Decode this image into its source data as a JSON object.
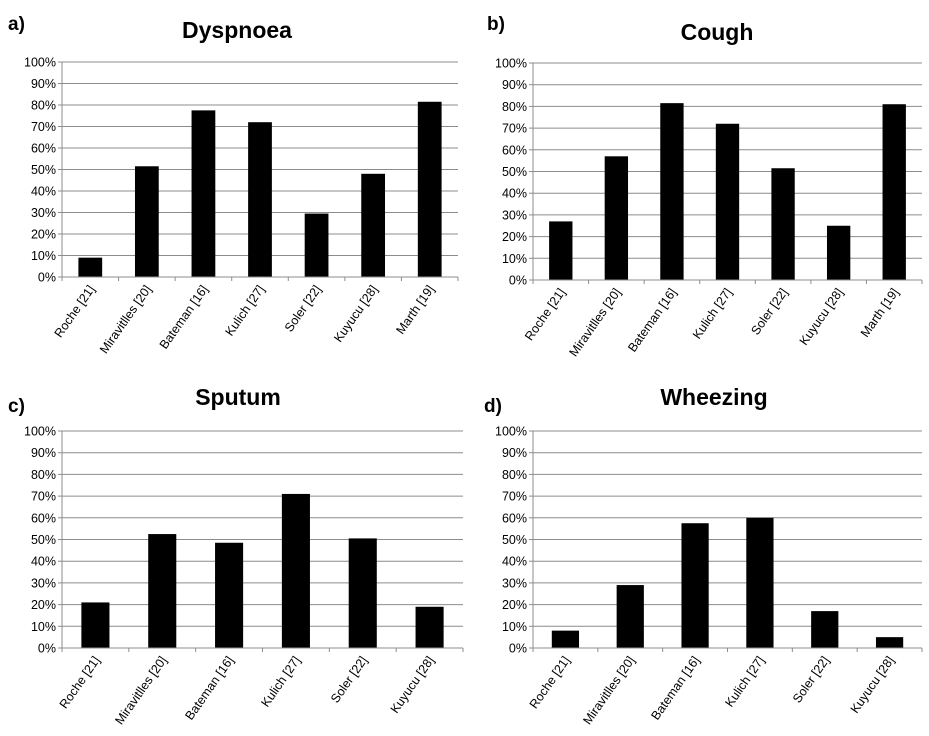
{
  "chart_data": [
    {
      "type": "bar",
      "panel": "a)",
      "title": "Dyspnoea",
      "categories": [
        "Roche [21]",
        "Miravitlles [20]",
        "Bateman [16]",
        "Kulich [27]",
        "Soler [22]",
        "Kuyucu [28]",
        "Marth [19]"
      ],
      "values": [
        9,
        51.5,
        77.5,
        72,
        29.5,
        48,
        81.5
      ],
      "ylim": [
        0,
        100
      ],
      "yticks": [
        "0%",
        "10%",
        "20%",
        "30%",
        "40%",
        "50%",
        "60%",
        "70%",
        "80%",
        "90%",
        "100%"
      ],
      "grid": true,
      "color": "#000000"
    },
    {
      "type": "bar",
      "panel": "b)",
      "title": "Cough",
      "categories": [
        "Roche [21]",
        "Miravitlles [20]",
        "Bateman [16]",
        "Kulich [27]",
        "Soler [22]",
        "Kuyucu [28]",
        "Marth [19]"
      ],
      "values": [
        27,
        57,
        81.5,
        72,
        51.5,
        25,
        81
      ],
      "ylim": [
        0,
        100
      ],
      "yticks": [
        "0%",
        "10%",
        "20%",
        "30%",
        "40%",
        "50%",
        "60%",
        "70%",
        "80%",
        "90%",
        "100%"
      ],
      "grid": true,
      "color": "#000000"
    },
    {
      "type": "bar",
      "panel": "c)",
      "title": "Sputum",
      "categories": [
        "Roche [21]",
        "Miravitlles [20]",
        "Bateman [16]",
        "Kulich [27]",
        "Soler [22]",
        "Kuyucu [28]"
      ],
      "values": [
        21,
        52.5,
        48.5,
        71,
        50.5,
        19
      ],
      "ylim": [
        0,
        100
      ],
      "yticks": [
        "0%",
        "10%",
        "20%",
        "30%",
        "40%",
        "50%",
        "60%",
        "70%",
        "80%",
        "90%",
        "100%"
      ],
      "grid": true,
      "color": "#000000"
    },
    {
      "type": "bar",
      "panel": "d)",
      "title": "Wheezing",
      "categories": [
        "Roche [21]",
        "Miravitlles [20]",
        "Bateman [16]",
        "Kulich [27]",
        "Soler [22]",
        "Kuyucu [28]"
      ],
      "values": [
        8,
        29,
        57.5,
        60,
        17,
        5
      ],
      "ylim": [
        0,
        100
      ],
      "yticks": [
        "0%",
        "10%",
        "20%",
        "30%",
        "40%",
        "50%",
        "60%",
        "70%",
        "80%",
        "90%",
        "100%"
      ],
      "grid": true,
      "color": "#000000"
    }
  ]
}
